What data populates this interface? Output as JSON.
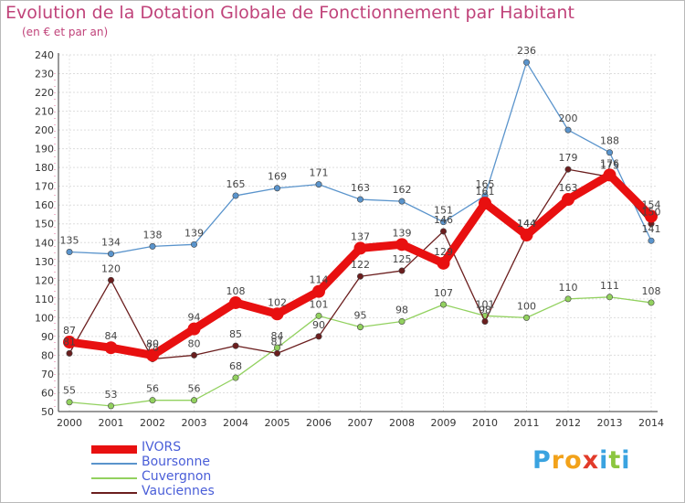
{
  "title": "Evolution de la Dotation Globale de Fonctionnement par Habitant",
  "subtitle": "(en € et par an)",
  "brand": {
    "letters": [
      "P",
      "r",
      "o",
      "x",
      "i",
      "t",
      "i"
    ],
    "colors": [
      "#3aa3e0",
      "#f2a21a",
      "#f2a21a",
      "#e23b2a",
      "#3aa3e0",
      "#8cc63f",
      "#3aa3e0"
    ]
  },
  "chart_data": {
    "type": "line",
    "title": "Evolution de la Dotation Globale de Fonctionnement par Habitant",
    "subtitle": "(en € et par an)",
    "xlabel": "",
    "ylabel": "",
    "x": [
      "2000",
      "2001",
      "2002",
      "2003",
      "2004",
      "2005",
      "2006",
      "2007",
      "2008",
      "2009",
      "2010",
      "2011",
      "2012",
      "2013",
      "2014"
    ],
    "ylim": [
      50,
      240
    ],
    "yticks": [
      50,
      60,
      70,
      80,
      90,
      100,
      110,
      120,
      130,
      140,
      150,
      160,
      170,
      180,
      190,
      200,
      210,
      220,
      230,
      240
    ],
    "grid": true,
    "legend_position": "bottom-left",
    "series": [
      {
        "name": "Boursonne",
        "color": "#5a94cc",
        "values": [
          135,
          134,
          138,
          139,
          165,
          169,
          171,
          163,
          162,
          151,
          165,
          236,
          200,
          188,
          141
        ]
      },
      {
        "name": "Cuvergnon",
        "color": "#92d15f",
        "values": [
          55,
          53,
          56,
          56,
          68,
          84,
          101,
          95,
          98,
          107,
          101,
          100,
          110,
          111,
          108
        ]
      },
      {
        "name": "Vauciennes",
        "color": "#6b1e1e",
        "values": [
          81,
          120,
          78,
          80,
          85,
          81,
          90,
          122,
          125,
          146,
          98,
          144,
          179,
          175,
          150
        ]
      },
      {
        "name": "IVORS",
        "color": "#e81010",
        "highlight": true,
        "values": [
          87,
          84,
          80,
          94,
          108,
          102,
          114,
          137,
          139,
          129,
          161,
          144,
          163,
          176,
          154
        ]
      }
    ],
    "legend_order": [
      "IVORS",
      "Boursonne",
      "Cuvergnon",
      "Vauciennes"
    ]
  }
}
